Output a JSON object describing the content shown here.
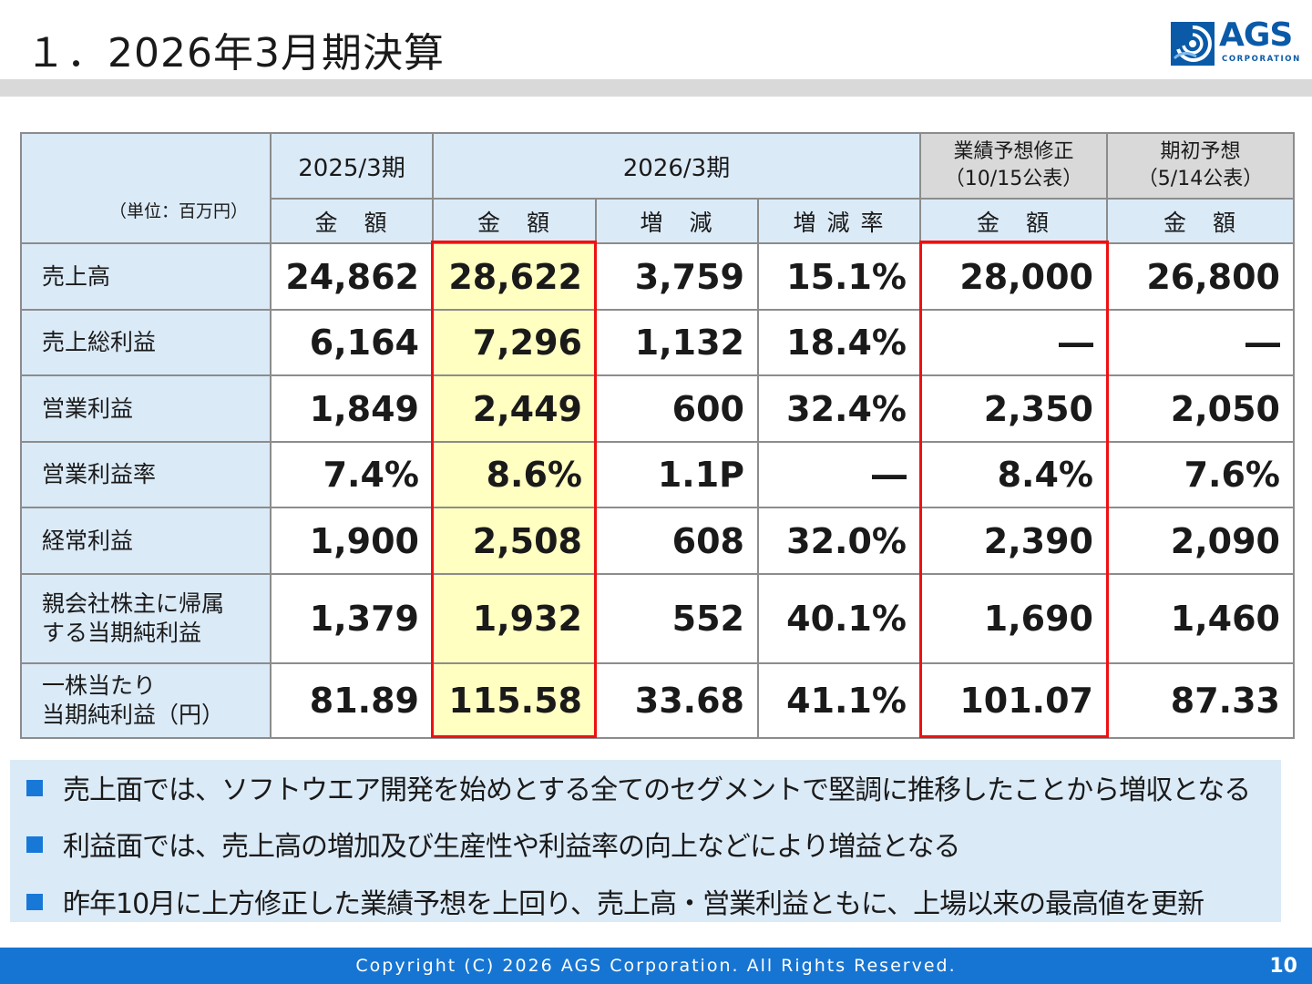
{
  "page": {
    "title": "１．2026年3月期決算",
    "logo_text": "AGS",
    "logo_sub": "CORPORATION",
    "copyright": "Copyright (C) 2026 AGS Corporation. All Rights Reserved.",
    "page_number": "10"
  },
  "table": {
    "unit_label": "（単位：百万円）",
    "col_2025": "2025/3期",
    "col_2026": "2026/3期",
    "col_revised_line1": "業績予想修正",
    "col_revised_line2": "（10/15公表）",
    "col_initial_line1": "期初予想",
    "col_initial_line2": "（5/14公表）",
    "sub_amount": "金　額",
    "sub_change": "増　減",
    "sub_rate": "増 減 率",
    "rows": [
      {
        "label": "売上高",
        "prev": "24,862",
        "curr": "28,622",
        "change": "3,759",
        "rate": "15.1%",
        "revised": "28,000",
        "initial": "26,800"
      },
      {
        "label": "売上総利益",
        "prev": "6,164",
        "curr": "7,296",
        "change": "1,132",
        "rate": "18.4%",
        "revised": "―",
        "initial": "―"
      },
      {
        "label": "営業利益",
        "prev": "1,849",
        "curr": "2,449",
        "change": "600",
        "rate": "32.4%",
        "revised": "2,350",
        "initial": "2,050"
      },
      {
        "label": "営業利益率",
        "prev": "7.4%",
        "curr": "8.6%",
        "change": "1.1P",
        "rate": "―",
        "revised": "8.4%",
        "initial": "7.6%"
      },
      {
        "label": "経常利益",
        "prev": "1,900",
        "curr": "2,508",
        "change": "608",
        "rate": "32.0%",
        "revised": "2,390",
        "initial": "2,090"
      },
      {
        "label": "親会社株主に帰属する当期純利益",
        "label_line1": "親会社株主に帰属",
        "label_line2": "する当期純利益",
        "prev": "1,379",
        "curr": "1,932",
        "change": "552",
        "rate": "40.1%",
        "revised": "1,690",
        "initial": "1,460"
      },
      {
        "label": "一株当たり当期純利益（円）",
        "label_line1": "一株当たり",
        "label_line2": "当期純利益（円）",
        "prev": "81.89",
        "curr": "115.58",
        "change": "33.68",
        "rate": "41.1%",
        "revised": "101.07",
        "initial": "87.33"
      }
    ]
  },
  "notes": [
    "売上面では、ソフトウエア開発を始めとする全てのセグメントで堅調に推移したことから増収となる",
    "利益面では、売上高の増加及び生産性や利益率の向上などにより増益となる",
    "昨年10月に上方修正した業績予想を上回り、売上高・営業利益ともに、上場以来の最高値を更新"
  ],
  "colors": {
    "header_blue": "#dbeaf7",
    "highlight_yellow": "#ffffc2",
    "emphasis_red": "#ee1111",
    "brand_blue": "#0a5aa8",
    "footer_blue": "#1675d2"
  }
}
